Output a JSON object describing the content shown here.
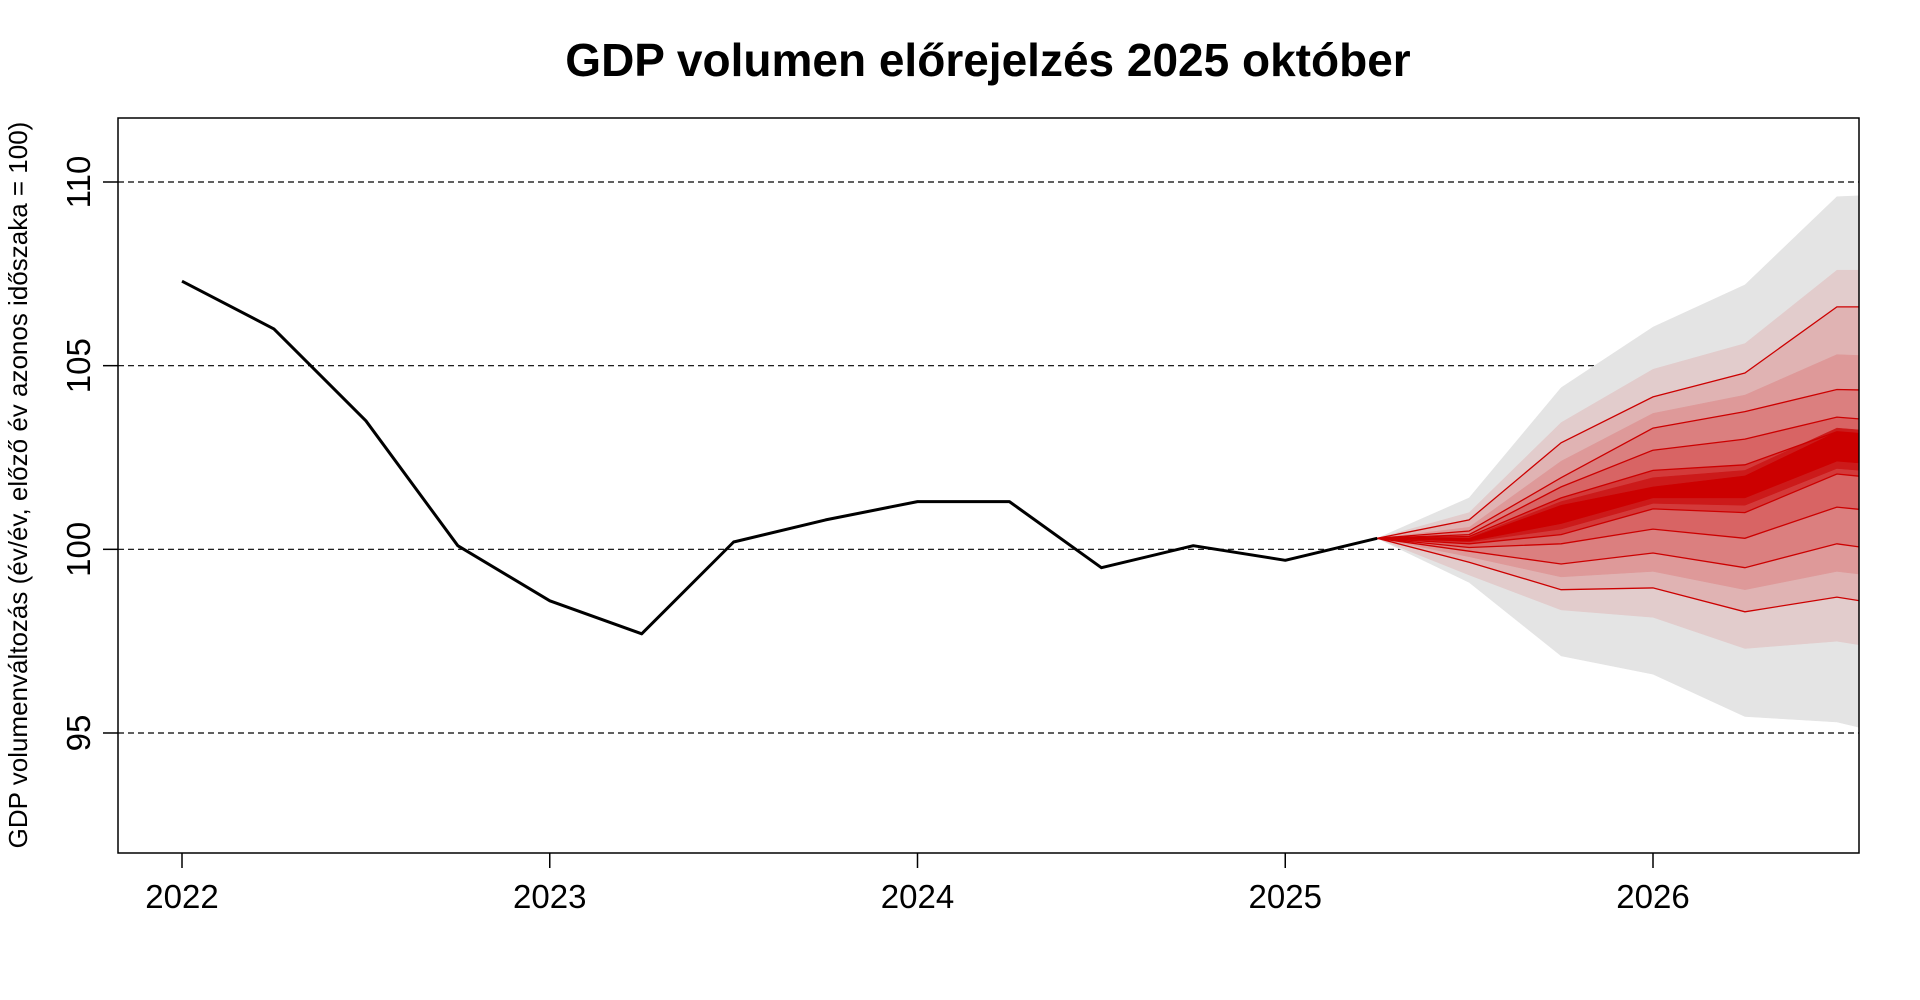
{
  "chart_data": {
    "type": "area",
    "title": "GDP volumen előrejelzés 2025 október",
    "xlabel": "",
    "ylabel": "GDP volumenváltozás (év/év, előző év azonos időszaka = 100)",
    "xlim": [
      2021.83,
      2026.65
    ],
    "ylim": [
      91.7,
      111.75
    ],
    "x_ticks": [
      2022,
      2023,
      2024,
      2025,
      2026
    ],
    "x_tick_labels": [
      "2022",
      "2023",
      "2024",
      "2025",
      "2026"
    ],
    "y_ticks": [
      95,
      100,
      105,
      110
    ],
    "y_tick_labels": [
      "95",
      "100",
      "105",
      "110"
    ],
    "grid": "horizontal dashed at y ticks",
    "legend": "none",
    "history": {
      "name": "GDP (actual)",
      "color": "#000000",
      "x": [
        2022.0,
        2022.25,
        2022.5,
        2022.75,
        2023.0,
        2023.25,
        2023.5,
        2023.75,
        2024.0,
        2024.25,
        2024.5,
        2024.75,
        2025.0,
        2025.25
      ],
      "y": [
        107.3,
        106.0,
        103.5,
        100.1,
        98.6,
        97.7,
        100.2,
        100.8,
        101.3,
        101.3,
        99.5,
        100.1,
        99.7,
        100.3
      ]
    },
    "forecast_fan": {
      "x": [
        2025.25,
        2025.5,
        2025.75,
        2026.0,
        2026.25,
        2026.5,
        2026.75
      ],
      "bands": [
        {
          "name": "band-outer-gray",
          "color": "#e4e4e4",
          "lower": [
            100.3,
            99.1,
            97.1,
            96.6,
            95.45,
            95.3,
            94.7
          ],
          "upper": [
            100.3,
            101.4,
            104.4,
            106.05,
            107.2,
            109.6,
            109.7
          ],
          "edge_line": false
        },
        {
          "name": "band-1",
          "color": "#e2cccc",
          "lower": [
            100.3,
            99.3,
            98.35,
            98.15,
            97.3,
            97.5,
            97.1
          ],
          "upper": [
            100.3,
            101.0,
            103.45,
            104.9,
            105.6,
            107.6,
            107.6
          ],
          "edge_line": false
        },
        {
          "name": "band-2",
          "color": "#e0b3b3",
          "lower": [
            100.3,
            99.65,
            98.9,
            98.95,
            98.3,
            98.7,
            98.3
          ],
          "upper": [
            100.3,
            100.8,
            102.9,
            104.15,
            104.8,
            106.6,
            106.6
          ],
          "edge_line": true
        },
        {
          "name": "band-3",
          "color": "#de9999",
          "lower": [
            100.3,
            99.8,
            99.25,
            99.4,
            98.9,
            99.4,
            99.1
          ],
          "upper": [
            100.3,
            100.6,
            102.4,
            103.7,
            104.2,
            105.3,
            105.2
          ],
          "edge_line": false
        },
        {
          "name": "band-4",
          "color": "#db7f7f",
          "lower": [
            100.3,
            99.95,
            99.6,
            99.9,
            99.5,
            100.15,
            99.8
          ],
          "upper": [
            100.3,
            100.5,
            101.95,
            103.3,
            103.75,
            104.35,
            104.3
          ],
          "edge_line": true
        },
        {
          "name": "band-5",
          "color": "#d86464",
          "lower": [
            100.3,
            100.05,
            100.15,
            100.55,
            100.3,
            101.15,
            100.9
          ],
          "upper": [
            100.3,
            100.4,
            101.7,
            102.7,
            103.0,
            103.6,
            103.4
          ],
          "edge_line": true
        },
        {
          "name": "band-6",
          "color": "#d33a3a",
          "lower": [
            100.3,
            100.15,
            100.4,
            101.1,
            101.0,
            102.05,
            101.8
          ],
          "upper": [
            100.3,
            100.35,
            101.4,
            102.15,
            102.3,
            103.2,
            103.0
          ],
          "edge_line": true
        },
        {
          "name": "band-7",
          "color": "#cc1a1a",
          "lower": [
            100.3,
            100.2,
            100.55,
            101.25,
            101.2,
            102.2,
            102.0
          ],
          "upper": [
            100.3,
            100.32,
            101.3,
            101.95,
            102.15,
            103.3,
            103.1
          ],
          "edge_line": false
        },
        {
          "name": "band-core",
          "color": "#cc0000",
          "lower": [
            100.3,
            100.22,
            100.7,
            101.4,
            101.4,
            102.4,
            102.2
          ],
          "upper": [
            100.3,
            100.3,
            101.2,
            101.7,
            102.0,
            103.2,
            102.9
          ],
          "edge_line": false
        }
      ],
      "edge_line_color": "#cc0000"
    }
  }
}
